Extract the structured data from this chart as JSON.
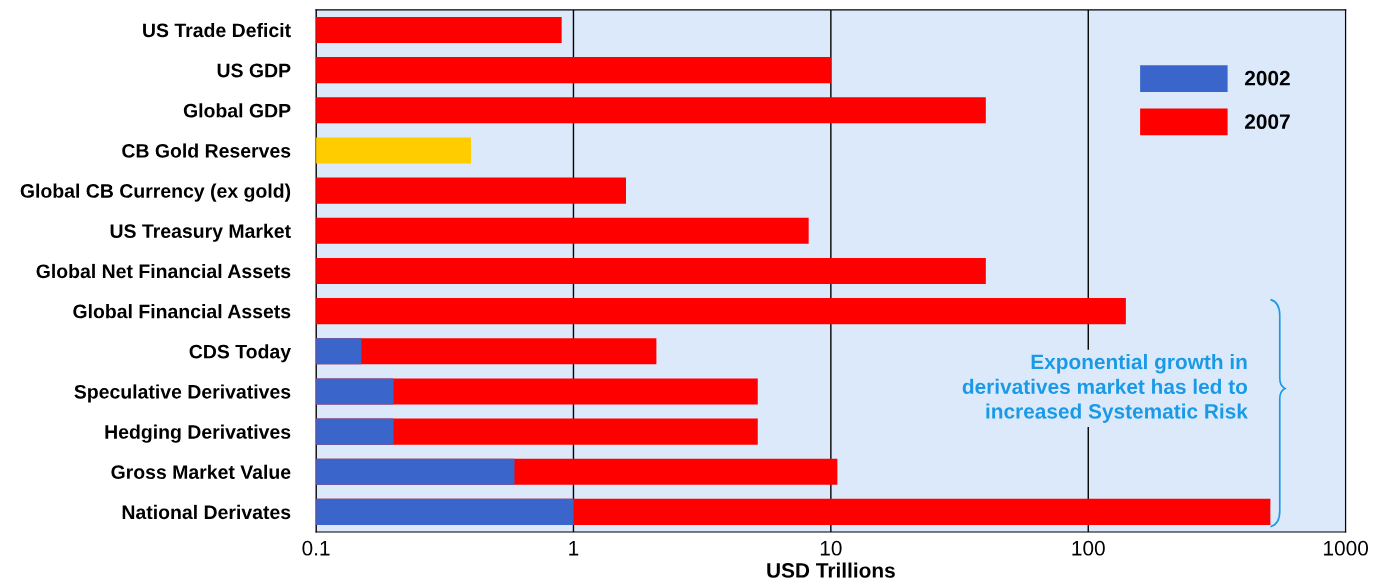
{
  "chart_data": {
    "type": "bar",
    "orientation": "horizontal",
    "xlabel": "USD Trillions",
    "categories": [
      "US Trade Deficit",
      "US GDP",
      "Global GDP",
      "CB Gold Reserves",
      "Global CB Currency (ex gold)",
      "US Treasury Market",
      "Global Net Financial Assets",
      "Global Financial Assets",
      "CDS Today",
      "Speculative Derivatives",
      "Hedging Derivatives",
      "Gross Market Value",
      "National Derivates"
    ],
    "series": [
      {
        "name": "2002",
        "color": "#3a66cc",
        "values": [
          null,
          null,
          null,
          null,
          null,
          null,
          null,
          null,
          0.15,
          0.2,
          0.2,
          0.59,
          1
        ]
      },
      {
        "name": "2007",
        "color": "#ff0000",
        "colors": [
          "#ff0000",
          "#ff0000",
          "#ff0000",
          "#ffcc00",
          "#ff0000",
          "#ff0000",
          "#ff0000",
          "#ff0000",
          "#ff0000",
          "#ff0000",
          "#ff0000",
          "#ff0000",
          "#ff0000"
        ],
        "values": [
          0.9,
          10,
          40,
          0.4,
          1.6,
          8.2,
          40,
          140,
          2.1,
          5.2,
          5.2,
          10.6,
          510
        ]
      }
    ],
    "log": "x",
    "xlim": [
      0.1,
      1000
    ],
    "xticks": [
      0.1,
      1,
      10,
      100,
      1000
    ],
    "grid": "x",
    "legend": "top right",
    "annotations": [
      "Exponential growth in\nderivatives market has led to\nincreased Systematic Risk"
    ]
  }
}
